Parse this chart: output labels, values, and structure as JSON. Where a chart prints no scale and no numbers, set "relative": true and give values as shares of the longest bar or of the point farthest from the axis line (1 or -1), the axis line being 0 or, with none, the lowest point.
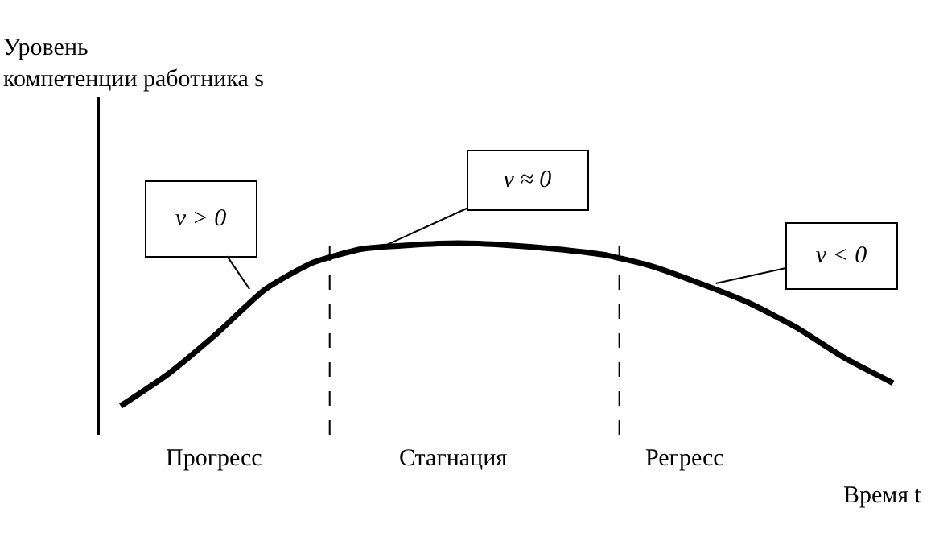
{
  "chart_data": {
    "type": "line",
    "relative": true,
    "categories": [
      null,
      null,
      null,
      null,
      null,
      null,
      null,
      null,
      null,
      null,
      null,
      null,
      null,
      null,
      null,
      null,
      null
    ],
    "series": [
      {
        "color": "#000000",
        "values": [
          0.15,
          0.32,
          0.53,
          0.76,
          0.9,
          0.97,
          0.99,
          1,
          0.99,
          0.97,
          0.94,
          0.88,
          0.79,
          0.69,
          0.56,
          0.4,
          0.27
        ]
      }
    ],
    "xlabel": "Время t",
    "annotations": [
      "Уровень\nкомпетенции работника s",
      "v > 0",
      "v ≈ 0",
      "v < 0",
      "Прогресс",
      "Стагнация",
      "Регресс"
    ],
    "legend": false,
    "marker": "none",
    "line_style": "solid"
  }
}
